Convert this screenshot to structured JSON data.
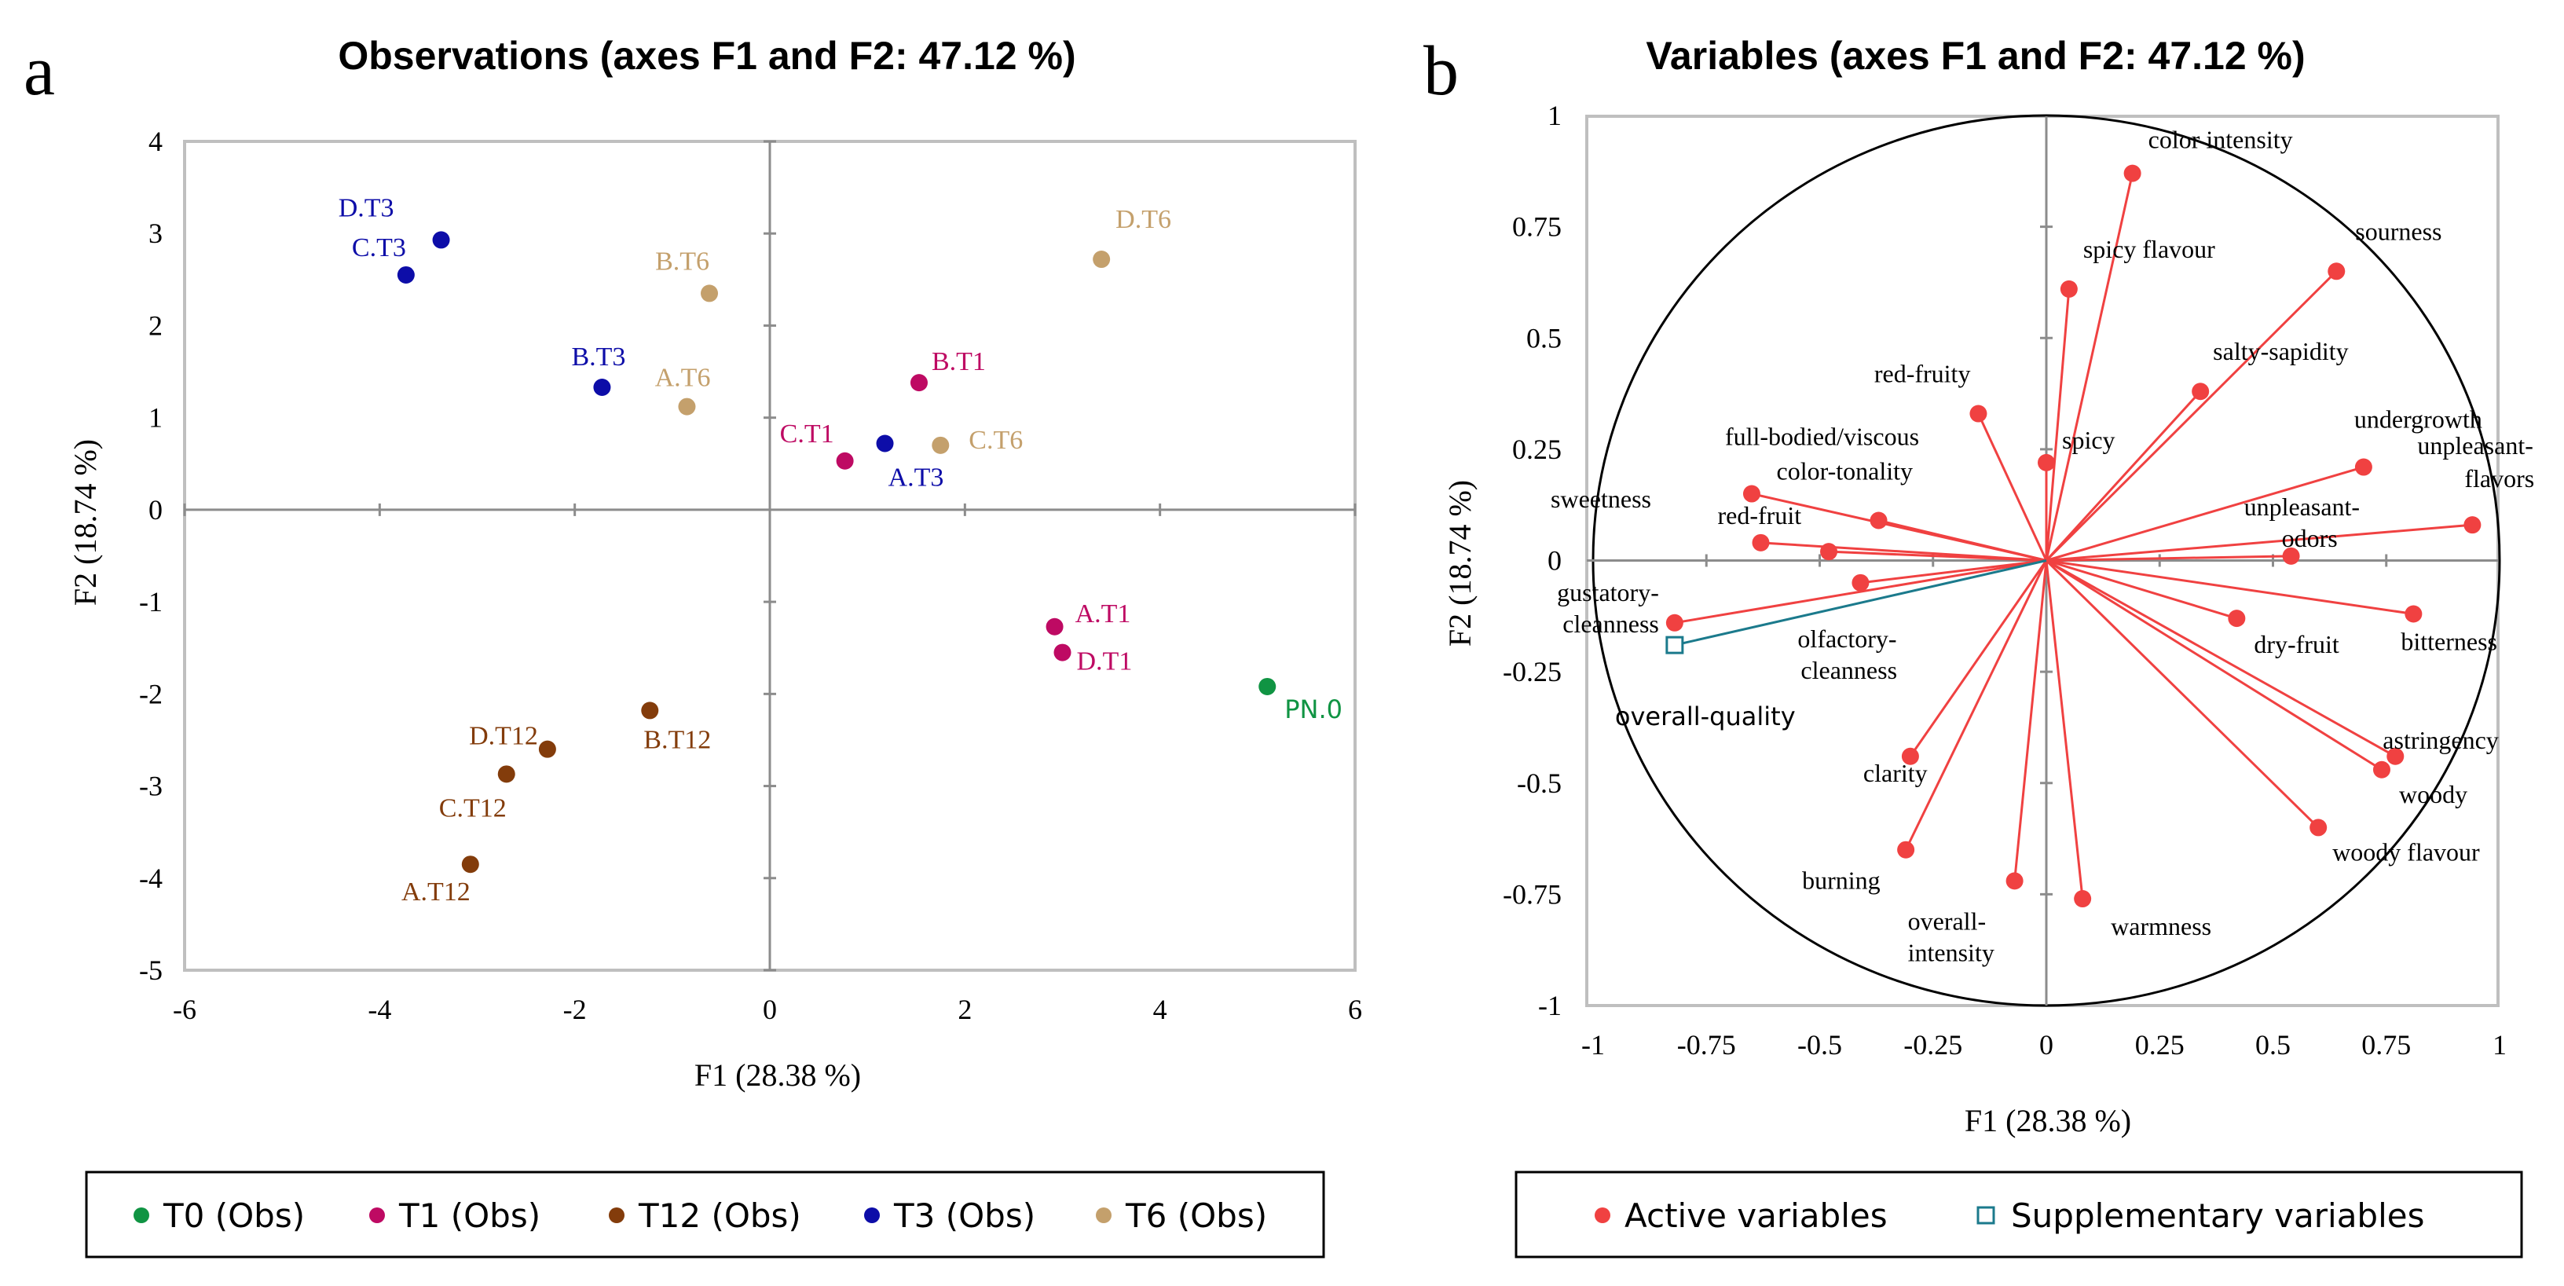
{
  "chart_data": [
    {
      "type": "scatter",
      "panel_label": "a",
      "title": "Observations (axes F1 and F2: 47.12 %)",
      "xlabel": "F1 (28.38 %)",
      "ylabel": "F2 (18.74 %)",
      "xlim": [
        -6,
        6
      ],
      "ylim": [
        -5,
        4
      ],
      "xticks": [
        "-6",
        "-4",
        "-2",
        "0",
        "2",
        "4",
        "6"
      ],
      "yticks": [
        "4",
        "3",
        "2",
        "1",
        "0",
        "-1",
        "-2",
        "-3",
        "-4",
        "-5"
      ],
      "grid": false,
      "legend_position": "bottom",
      "series": [
        {
          "name": "T0 (Obs)",
          "color": "#109443",
          "points": [
            {
              "label": "PN.0",
              "x": 5.1,
              "y": -1.92
            }
          ]
        },
        {
          "name": "T1 (Obs)",
          "color": "#be0a63",
          "points": [
            {
              "label": "B.T1",
              "x": 1.53,
              "y": 1.38
            },
            {
              "label": "C.T1",
              "x": 0.77,
              "y": 0.53
            },
            {
              "label": "A.T1",
              "x": 2.92,
              "y": -1.27
            },
            {
              "label": "D.T1",
              "x": 3.0,
              "y": -1.55
            }
          ]
        },
        {
          "name": "T12 (Obs)",
          "color": "#833c0b",
          "points": [
            {
              "label": "B.T12",
              "x": -1.23,
              "y": -2.18
            },
            {
              "label": "D.T12",
              "x": -2.28,
              "y": -2.6
            },
            {
              "label": "C.T12",
              "x": -2.7,
              "y": -2.87
            },
            {
              "label": "A.T12",
              "x": -3.07,
              "y": -3.85
            }
          ]
        },
        {
          "name": "T3 (Obs)",
          "color": "#0d0da8",
          "points": [
            {
              "label": "D.T3",
              "x": -3.37,
              "y": 2.93
            },
            {
              "label": "C.T3",
              "x": -3.73,
              "y": 2.55
            },
            {
              "label": "B.T3",
              "x": -1.72,
              "y": 1.33
            },
            {
              "label": "A.T3",
              "x": 1.18,
              "y": 0.72
            }
          ]
        },
        {
          "name": "T6 (Obs)",
          "color": "#c4a06c",
          "points": [
            {
              "label": "D.T6",
              "x": 3.4,
              "y": 2.72
            },
            {
              "label": "B.T6",
              "x": -0.62,
              "y": 2.35
            },
            {
              "label": "A.T6",
              "x": -0.85,
              "y": 1.12
            },
            {
              "label": "C.T6",
              "x": 1.75,
              "y": 0.7
            }
          ]
        }
      ]
    },
    {
      "type": "scatter",
      "subtype": "correlation-circle",
      "panel_label": "b",
      "title": "Variables (axes F1 and F2: 47.12 %)",
      "xlabel": "F1 (28.38 %)",
      "ylabel": "F2 (18.74 %)",
      "xlim": [
        -1,
        1
      ],
      "ylim": [
        -1,
        1
      ],
      "xticks": [
        "-1",
        "-0.75",
        "-0.5",
        "-0.25",
        "0",
        "0.25",
        "0.5",
        "0.75",
        "1"
      ],
      "yticks": [
        "1",
        "0.75",
        "0.5",
        "0.25",
        "0",
        "-0.25",
        "-0.5",
        "-0.75",
        "-1"
      ],
      "grid": false,
      "legend_position": "bottom",
      "series": [
        {
          "name": "Active variables",
          "color": "#f04141",
          "points": [
            {
              "label": "color intensity",
              "x": 0.19,
              "y": 0.87
            },
            {
              "label": "sourness",
              "x": 0.64,
              "y": 0.65
            },
            {
              "label": "spicy flavour",
              "x": 0.05,
              "y": 0.61
            },
            {
              "label": "salty-sapidity",
              "x": 0.34,
              "y": 0.38
            },
            {
              "label": "red-fruity",
              "x": -0.15,
              "y": 0.33
            },
            {
              "label": "spicy",
              "x": 0.0,
              "y": 0.22
            },
            {
              "label": "undergrowth",
              "x": 0.7,
              "y": 0.21
            },
            {
              "label": "full-bodied/viscous",
              "x": -0.65,
              "y": 0.15
            },
            {
              "label": "color-tonality",
              "x": -0.37,
              "y": 0.09
            },
            {
              "label": "unpleasant-flavors",
              "x": 0.94,
              "y": 0.08
            },
            {
              "label": "red-fruit",
              "x": -0.63,
              "y": 0.04
            },
            {
              "label": "sweetness",
              "x": -0.48,
              "y": 0.02
            },
            {
              "label": "unpleasant-odors",
              "x": 0.54,
              "y": 0.01
            },
            {
              "label": "olfactory-cleanness",
              "x": -0.41,
              "y": -0.05
            },
            {
              "label": "gustatory-cleanness",
              "x": -0.82,
              "y": -0.14
            },
            {
              "label": "dry-fruit",
              "x": 0.42,
              "y": -0.13
            },
            {
              "label": "bitterness",
              "x": 0.81,
              "y": -0.12
            },
            {
              "label": "astringency",
              "x": 0.77,
              "y": -0.44
            },
            {
              "label": "woody",
              "x": 0.74,
              "y": -0.47
            },
            {
              "label": "woody flavour",
              "x": 0.6,
              "y": -0.6
            },
            {
              "label": "clarity",
              "x": -0.3,
              "y": -0.44
            },
            {
              "label": "burning",
              "x": -0.31,
              "y": -0.65
            },
            {
              "label": "overall-intensity",
              "x": -0.07,
              "y": -0.72
            },
            {
              "label": "warmness",
              "x": 0.08,
              "y": -0.76
            }
          ]
        },
        {
          "name": "Supplementary variables",
          "color": "#1b7a8c",
          "points": [
            {
              "label": "overall-quality",
              "x": -0.82,
              "y": -0.19
            }
          ]
        }
      ]
    }
  ]
}
